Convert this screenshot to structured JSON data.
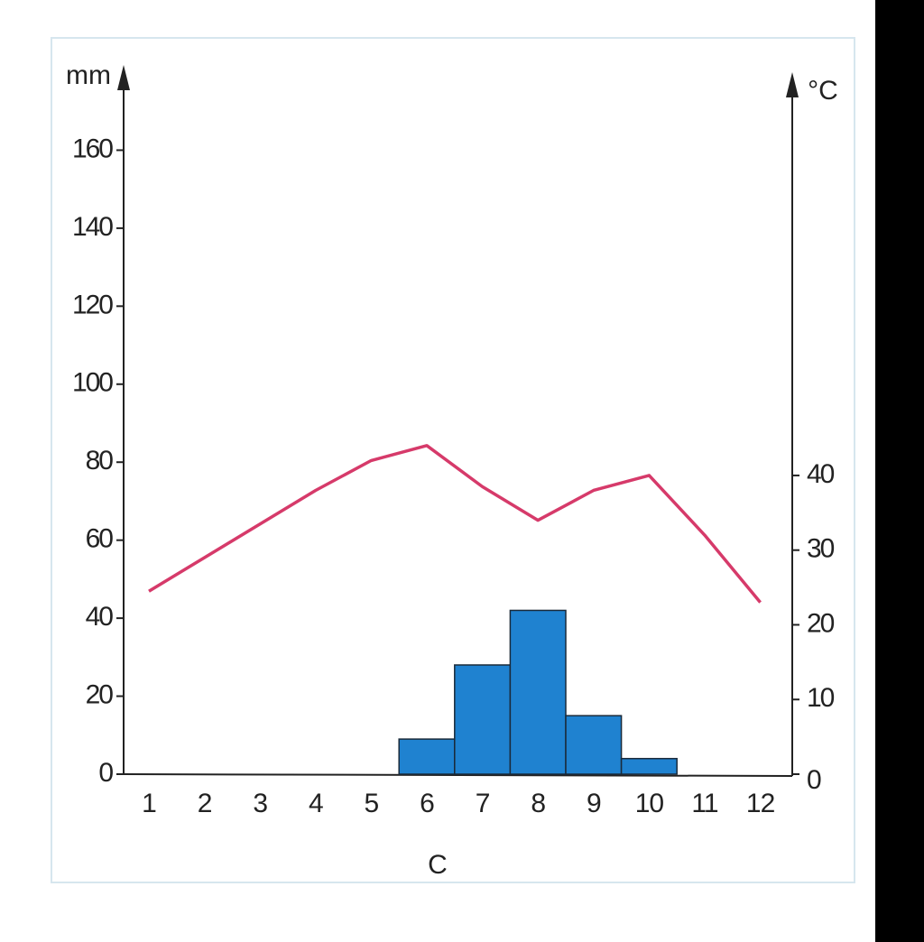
{
  "chart_data": {
    "type": "bar-line",
    "x_label": "C",
    "y_label": "mm",
    "y2_label": "°C",
    "categories": [
      "1",
      "2",
      "3",
      "4",
      "5",
      "6",
      "7",
      "8",
      "9",
      "10",
      "11",
      "12"
    ],
    "series": [
      {
        "type": "bar",
        "color": "#1f82d0",
        "values": [
          0,
          0,
          0,
          0,
          0,
          9,
          28,
          42,
          15,
          4,
          0,
          0
        ]
      },
      {
        "type": "line",
        "axis": "y2",
        "color": "#d63a6a",
        "values": [
          24.5,
          29,
          33.5,
          38,
          42,
          44,
          38.5,
          34,
          38,
          40,
          32,
          23
        ]
      }
    ],
    "ylim": [
      0,
      180
    ],
    "yticks": [
      0,
      20,
      40,
      60,
      80,
      100,
      120,
      140,
      160
    ],
    "y2lim": [
      0,
      94
    ],
    "y2ticks": [
      0,
      10,
      20,
      30,
      40
    ]
  }
}
